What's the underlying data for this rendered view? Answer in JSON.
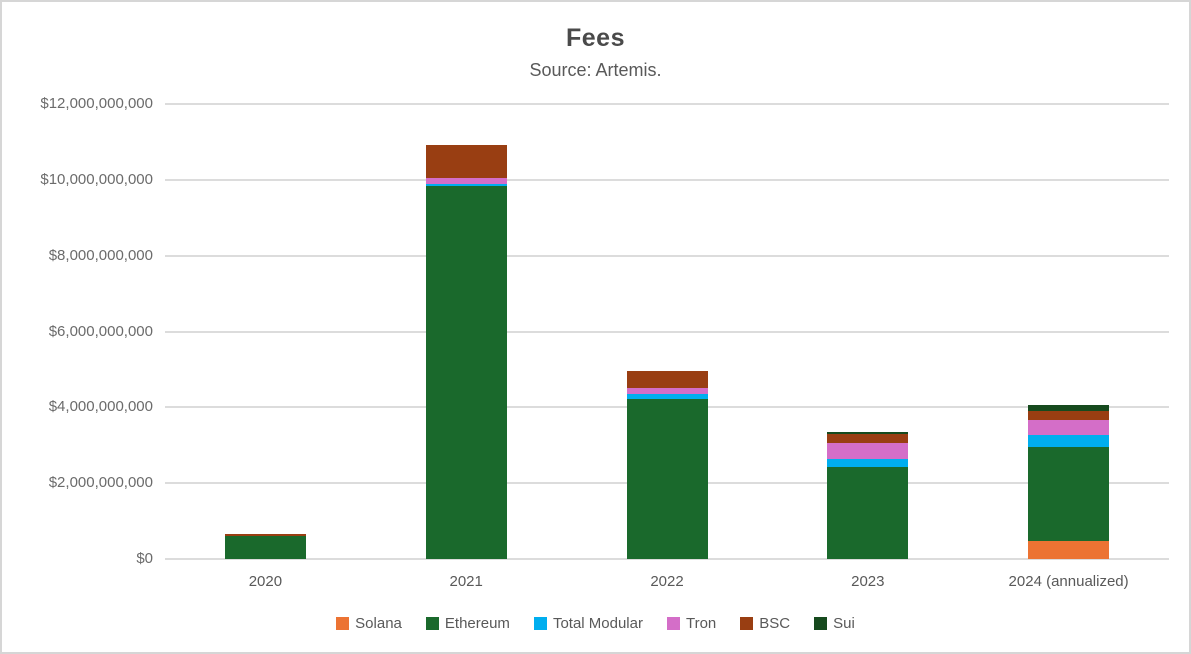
{
  "chart": {
    "title": "Fees",
    "subtitle": "Source: Artemis."
  },
  "chart_data": {
    "type": "bar",
    "stacked": true,
    "title": "Fees",
    "subtitle": "Source: Artemis.",
    "xlabel": "",
    "ylabel": "",
    "grid": true,
    "legend_position": "bottom",
    "ylim": [
      0,
      12000000000
    ],
    "categories": [
      "2020",
      "2021",
      "2022",
      "2023",
      "2024 (annualized)"
    ],
    "y_ticks": [
      {
        "value": 0,
        "label": "$0"
      },
      {
        "value": 2000000000,
        "label": "$2,000,000,000"
      },
      {
        "value": 4000000000,
        "label": "$4,000,000,000"
      },
      {
        "value": 6000000000,
        "label": "$6,000,000,000"
      },
      {
        "value": 8000000000,
        "label": "$8,000,000,000"
      },
      {
        "value": 10000000000,
        "label": "$10,000,000,000"
      },
      {
        "value": 12000000000,
        "label": "$12,000,000,000"
      }
    ],
    "series": [
      {
        "name": "Solana",
        "color": "#EC7333",
        "values": [
          0,
          0,
          0,
          0,
          480000000
        ]
      },
      {
        "name": "Ethereum",
        "color": "#1A692C",
        "values": [
          600000000,
          9830000000,
          4230000000,
          2430000000,
          2480000000
        ]
      },
      {
        "name": "Total Modular",
        "color": "#00AEEF",
        "values": [
          0,
          70000000,
          110000000,
          220000000,
          310000000
        ]
      },
      {
        "name": "Tron",
        "color": "#D46EC8",
        "values": [
          0,
          160000000,
          170000000,
          400000000,
          400000000
        ]
      },
      {
        "name": "BSC",
        "color": "#993E12",
        "values": [
          50000000,
          870000000,
          450000000,
          240000000,
          240000000
        ]
      },
      {
        "name": "Sui",
        "color": "#164A1E",
        "values": [
          0,
          0,
          0,
          60000000,
          140000000
        ]
      }
    ]
  }
}
